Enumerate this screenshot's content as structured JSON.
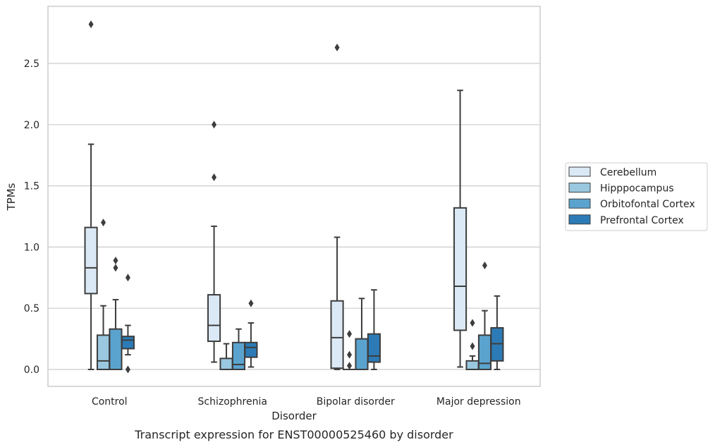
{
  "chart_data": {
    "type": "box",
    "title": "",
    "caption": "Transcript expression for ENST00000525460 by disorder",
    "xlabel": "Disorder",
    "ylabel": "TPMs",
    "ylim": [
      -0.14,
      2.96
    ],
    "yticks": [
      "0.0",
      "0.5",
      "1.0",
      "1.5",
      "2.0",
      "2.5"
    ],
    "grid": "horizontal",
    "legend_position": "right",
    "categories": [
      "Control",
      "Schizophrenia",
      "Bipolar disorder",
      "Major depression"
    ],
    "series": [
      {
        "name": "Cerebellum",
        "color": "#dbe9f6",
        "boxes": [
          {
            "whislo": 0.0,
            "q1": 0.62,
            "med": 0.83,
            "q3": 1.16,
            "whishi": 1.84,
            "fliers": [
              2.82
            ]
          },
          {
            "whislo": 0.06,
            "q1": 0.23,
            "med": 0.36,
            "q3": 0.61,
            "whishi": 1.17,
            "fliers": [
              1.57,
              2.0
            ]
          },
          {
            "whislo": 0.0,
            "q1": 0.01,
            "med": 0.26,
            "q3": 0.56,
            "whishi": 1.08,
            "fliers": [
              2.63
            ]
          },
          {
            "whislo": 0.02,
            "q1": 0.32,
            "med": 0.68,
            "q3": 1.32,
            "whishi": 2.28,
            "fliers": []
          }
        ]
      },
      {
        "name": "Hipppocampus",
        "color": "#9ac8e0",
        "boxes": [
          {
            "whislo": 0.0,
            "q1": 0.0,
            "med": 0.07,
            "q3": 0.28,
            "whishi": 0.52,
            "fliers": [
              1.2
            ]
          },
          {
            "whislo": 0.0,
            "q1": 0.0,
            "med": 0.0,
            "q3": 0.09,
            "whishi": 0.21,
            "fliers": []
          },
          {
            "whislo": 0.0,
            "q1": 0.0,
            "med": 0.0,
            "q3": 0.0,
            "whishi": 0.0,
            "fliers": [
              0.03,
              0.12,
              0.29
            ]
          },
          {
            "whislo": 0.0,
            "q1": 0.0,
            "med": 0.0,
            "q3": 0.07,
            "whishi": 0.11,
            "fliers": [
              0.19,
              0.38
            ]
          }
        ]
      },
      {
        "name": "Orbitofontal Cortex",
        "color": "#5ba3cf",
        "boxes": [
          {
            "whislo": 0.0,
            "q1": 0.0,
            "med": 0.0,
            "q3": 0.33,
            "whishi": 0.57,
            "fliers": [
              0.83,
              0.89
            ]
          },
          {
            "whislo": 0.0,
            "q1": 0.0,
            "med": 0.04,
            "q3": 0.22,
            "whishi": 0.33,
            "fliers": []
          },
          {
            "whislo": 0.0,
            "q1": 0.0,
            "med": 0.0,
            "q3": 0.25,
            "whishi": 0.58,
            "fliers": []
          },
          {
            "whislo": 0.0,
            "q1": 0.0,
            "med": 0.05,
            "q3": 0.28,
            "whishi": 0.48,
            "fliers": [
              0.85
            ]
          }
        ]
      },
      {
        "name": "Prefrontal Cortex",
        "color": "#2c7bb6",
        "boxes": [
          {
            "whislo": 0.12,
            "q1": 0.17,
            "med": 0.24,
            "q3": 0.27,
            "whishi": 0.36,
            "fliers": [
              0.0,
              0.75
            ]
          },
          {
            "whislo": 0.02,
            "q1": 0.1,
            "med": 0.18,
            "q3": 0.22,
            "whishi": 0.38,
            "fliers": [
              0.54
            ]
          },
          {
            "whislo": 0.0,
            "q1": 0.06,
            "med": 0.11,
            "q3": 0.29,
            "whishi": 0.65,
            "fliers": []
          },
          {
            "whislo": 0.0,
            "q1": 0.07,
            "med": 0.21,
            "q3": 0.34,
            "whishi": 0.6,
            "fliers": []
          }
        ]
      }
    ]
  }
}
